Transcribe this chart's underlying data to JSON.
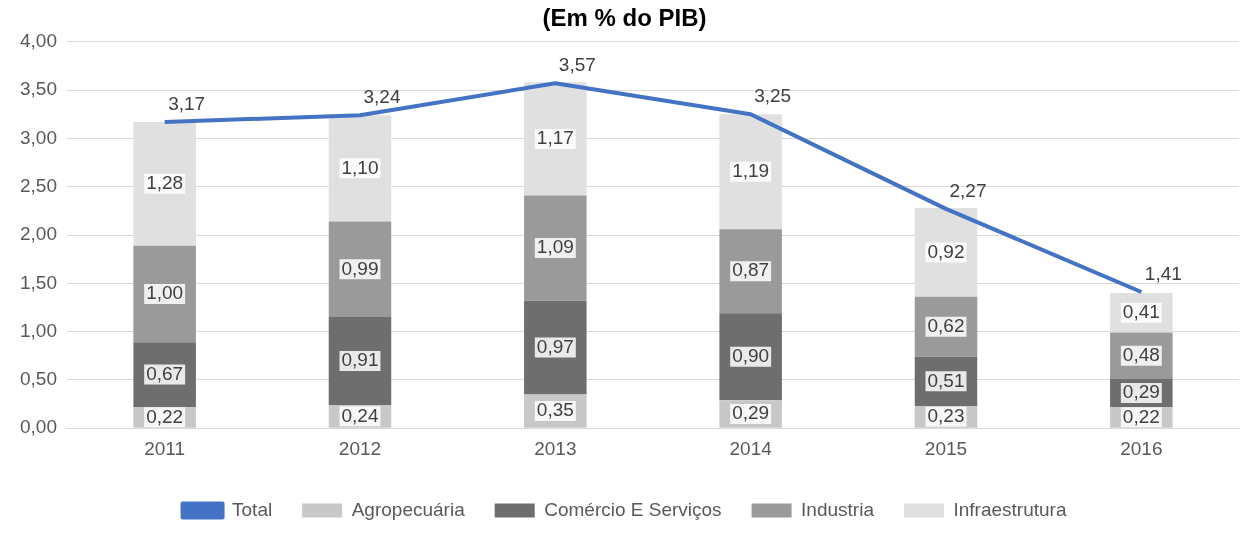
{
  "chart_data": {
    "type": "bar",
    "title": "(Em % do PIB)",
    "stacked": true,
    "categories": [
      "2011",
      "2012",
      "2013",
      "2014",
      "2015",
      "2016"
    ],
    "series": [
      {
        "name": "Agropecuária",
        "color": "#c8c8c8",
        "values": [
          0.22,
          0.24,
          0.35,
          0.29,
          0.23,
          0.22
        ],
        "value_labels": [
          "0,22",
          "0,24",
          "0,35",
          "0,29",
          "0,23",
          "0,22"
        ]
      },
      {
        "name": "Comércio E Serviços",
        "color": "#6e6e6e",
        "values": [
          0.67,
          0.91,
          0.97,
          0.9,
          0.51,
          0.29
        ],
        "value_labels": [
          "0,67",
          "0,91",
          "0,97",
          "0,90",
          "0,51",
          "0,29"
        ]
      },
      {
        "name": "Industria",
        "color": "#9a9a9a",
        "values": [
          1.0,
          0.99,
          1.09,
          0.87,
          0.62,
          0.48
        ],
        "value_labels": [
          "1,00",
          "0,99",
          "1,09",
          "0,87",
          "0,62",
          "0,48"
        ]
      },
      {
        "name": "Infraestrutura",
        "color": "#e0e0e0",
        "values": [
          1.28,
          1.1,
          1.17,
          1.19,
          0.92,
          0.41
        ],
        "value_labels": [
          "1,28",
          "1,10",
          "1,17",
          "1,19",
          "0,92",
          "0,41"
        ]
      },
      {
        "name": "Total",
        "type": "line",
        "color": "#4472c4",
        "values": [
          3.17,
          3.24,
          3.57,
          3.25,
          2.27,
          1.41
        ],
        "value_labels": [
          "3,17",
          "3,24",
          "3,57",
          "3,25",
          "2,27",
          "1,41"
        ]
      }
    ],
    "ylim": [
      0,
      4
    ],
    "yticks": [
      {
        "value": 0,
        "label": "0,00"
      },
      {
        "value": 0.5,
        "label": "0,50"
      },
      {
        "value": 1,
        "label": "1,00"
      },
      {
        "value": 1.5,
        "label": "1,50"
      },
      {
        "value": 2,
        "label": "2,00"
      },
      {
        "value": 2.5,
        "label": "2,50"
      },
      {
        "value": 3,
        "label": "3,00"
      },
      {
        "value": 3.5,
        "label": "3,50"
      },
      {
        "value": 4,
        "label": "4,00"
      }
    ],
    "grid": "y",
    "legend": "bottom",
    "marker": "none"
  }
}
